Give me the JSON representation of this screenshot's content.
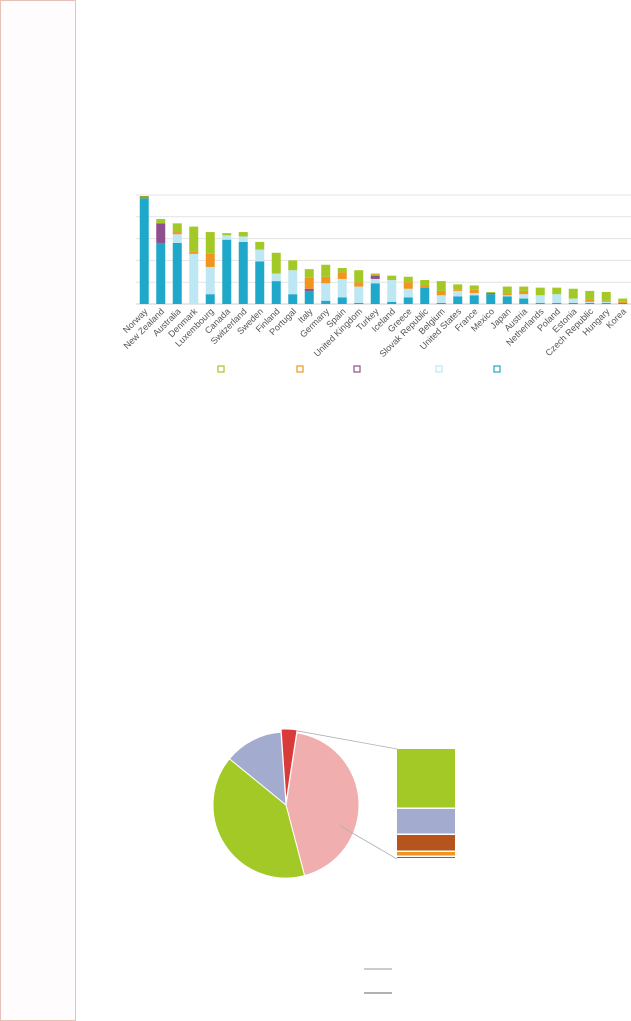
{
  "colors": {
    "margin_border": "#e7c0b8",
    "axis": "#cfcfcf",
    "grid": "#e3e3e3",
    "tick_label": "#555555",
    "leader_line": "#b0b0b0"
  },
  "chart_data": [
    {
      "type": "bar",
      "stacked": true,
      "title": "",
      "xlabel": "",
      "ylabel": "",
      "ylim": [
        0,
        50
      ],
      "y_tick_count": 6,
      "y_tick_labels_visible": false,
      "grid": true,
      "legend_position": "bottom",
      "categories": [
        "Norway",
        "New Zealand",
        "Australia",
        "Denmark",
        "Luxembourg",
        "Canada",
        "Switzerland",
        "Sweden",
        "Finland",
        "Portugal",
        "Italy",
        "Germany",
        "Spain",
        "United Kingdom",
        "Turkey",
        "Iceland",
        "Greece",
        "Slovak Republic",
        "Belgium",
        "United States",
        "France",
        "Mexico",
        "Japan",
        "Austria",
        "Netherlands",
        "Poland",
        "Estonia",
        "Czech Republic",
        "Hungary",
        "Korea"
      ],
      "series": [
        {
          "color": "#1fa8c9",
          "values": [
            48.5,
            28,
            28,
            0,
            4.5,
            29.5,
            28.5,
            19.5,
            10.5,
            4.5,
            6,
            1.5,
            3,
            0.5,
            9.5,
            1,
            3,
            7.5,
            0.5,
            3.5,
            4,
            4.5,
            3.5,
            2.5,
            0.5,
            0.5,
            0.5,
            0.5,
            0.5,
            0.5
          ]
        },
        {
          "color": "#bde7f2",
          "values": [
            0,
            0,
            4,
            23,
            12.5,
            2,
            2.5,
            5.5,
            3.5,
            11,
            0,
            8,
            8.5,
            7.5,
            2,
            10,
            4,
            0,
            3.5,
            2.5,
            1,
            0,
            0.5,
            2,
            3.5,
            4,
            2,
            0.5,
            0.5,
            0
          ]
        },
        {
          "color": "#8e4f8e",
          "values": [
            0,
            9,
            0,
            0,
            0,
            0,
            0,
            0,
            0,
            0,
            1,
            0,
            0,
            0,
            1.5,
            0,
            0,
            0,
            0,
            0,
            0,
            0.5,
            0,
            0,
            0,
            0,
            0,
            0,
            0,
            0
          ]
        },
        {
          "color": "#f1951f",
          "values": [
            0,
            0,
            1,
            1,
            6,
            0,
            0,
            0,
            0,
            0,
            5,
            3,
            3,
            2,
            0.5,
            0,
            3,
            1,
            2,
            0.5,
            1.5,
            0,
            1,
            1.5,
            0,
            0,
            0,
            1,
            0.5,
            0.5
          ]
        },
        {
          "color": "#a3c926",
          "values": [
            0,
            2,
            4,
            11.5,
            10,
            1,
            2,
            3.5,
            9.5,
            4.5,
            4,
            5.5,
            2,
            5.5,
            0.5,
            2,
            2.5,
            2.5,
            4.5,
            2.5,
            2,
            0.5,
            3,
            2,
            3.5,
            3,
            4.5,
            4,
            4,
            1.5
          ]
        },
        {
          "color": "#8aa31a",
          "values": [
            1,
            0,
            0,
            0,
            0,
            0,
            0,
            0,
            0,
            0,
            0,
            0,
            0,
            0,
            0,
            0,
            0,
            0,
            0,
            0,
            0,
            0,
            0,
            0,
            0,
            0,
            0,
            0,
            0,
            0
          ]
        }
      ],
      "legend_colors": [
        "#a3c926",
        "#f1951f",
        "#8e4f8e",
        "#bde7f2",
        "#1fa8c9"
      ]
    },
    {
      "type": "pie",
      "title": "",
      "slice_colors": [
        "#f0aeae",
        "#a3c926",
        "#a3abcf",
        "#d93b3b"
      ],
      "values": [
        43.5,
        40,
        13,
        3.5
      ],
      "exploded_slice_index": 3,
      "breakdown": {
        "type": "bar",
        "stacked": true,
        "colors": [
          "#a3c926",
          "#a3abcf",
          "#b5541c",
          "#f1951f",
          "#d93b3b"
        ],
        "values": [
          60,
          26,
          17,
          5,
          2
        ]
      }
    }
  ],
  "bottom_legend": {
    "line_colors": [
      "#bbbbbb",
      "#999999"
    ]
  }
}
